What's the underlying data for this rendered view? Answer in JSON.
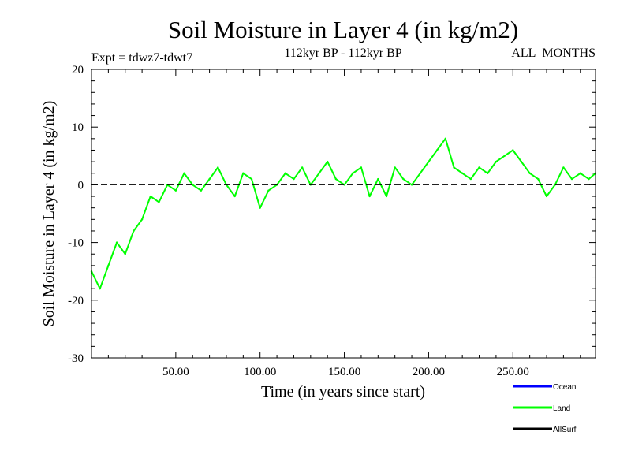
{
  "chart_data": {
    "type": "line",
    "title": "Soil Moisture in Layer 4 (in kg/m2)",
    "subtitle_left": "Expt = tdwz7-tdwt7",
    "subtitle_center": "112kyr BP - 112kyr BP",
    "subtitle_right": "ALL_MONTHS",
    "xlabel": "Time (in years since start)",
    "ylabel": "Soil Moisture in Layer 4 (in kg/m2)",
    "xlim": [
      0,
      299
    ],
    "ylim": [
      -30,
      20
    ],
    "xticks": [
      50,
      100,
      150,
      200,
      250
    ],
    "xtick_labels": [
      "50.00",
      "100.00",
      "150.00",
      "200.00",
      "250.00"
    ],
    "yticks": [
      -30,
      -20,
      -10,
      0,
      10,
      20
    ],
    "ytick_labels": [
      "-30",
      "-20",
      "-10",
      "0",
      "10",
      "20"
    ],
    "reference_line": {
      "y": 0,
      "style": "dashed"
    },
    "legend": {
      "placement": "bottom-right",
      "entries": [
        "Ocean",
        "Land",
        "AllSurf"
      ]
    },
    "series": [
      {
        "name": "Land",
        "color": "#00ff00",
        "x": [
          0,
          5,
          10,
          15,
          20,
          25,
          30,
          35,
          40,
          45,
          50,
          55,
          60,
          65,
          70,
          75,
          80,
          85,
          90,
          95,
          100,
          105,
          110,
          115,
          120,
          125,
          130,
          135,
          140,
          145,
          150,
          155,
          160,
          165,
          170,
          175,
          180,
          185,
          190,
          195,
          200,
          205,
          210,
          215,
          220,
          225,
          230,
          235,
          240,
          245,
          250,
          255,
          260,
          265,
          270,
          275,
          280,
          285,
          290,
          295,
          299
        ],
        "values": [
          -15,
          -18,
          -14,
          -10,
          -12,
          -8,
          -6,
          -2,
          -3,
          0,
          -1,
          2,
          0,
          -1,
          1,
          3,
          0,
          -2,
          2,
          1,
          -4,
          -1,
          0,
          2,
          1,
          3,
          0,
          2,
          4,
          1,
          0,
          2,
          3,
          -2,
          1,
          -2,
          3,
          1,
          0,
          2,
          4,
          6,
          8,
          3,
          2,
          1,
          3,
          2,
          4,
          5,
          6,
          4,
          2,
          1,
          -2,
          0,
          3,
          1,
          2,
          1,
          2
        ]
      },
      {
        "name": "Ocean",
        "color": "#0000ff",
        "values": []
      },
      {
        "name": "AllSurf",
        "color": "#000000",
        "values": []
      }
    ]
  }
}
